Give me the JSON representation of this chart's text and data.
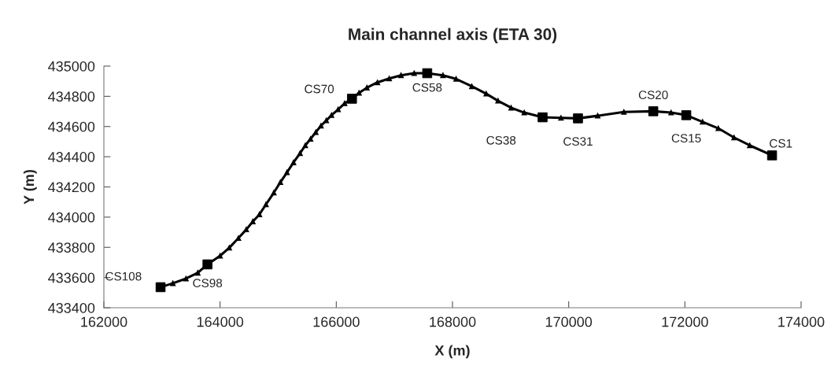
{
  "chart_data": {
    "type": "line",
    "title": "Main channel axis (ETA 30)",
    "xlabel": "X (m)",
    "ylabel": "Y (m)",
    "series": [
      {
        "marker": "triangle",
        "color": "#000000",
        "x": [
          162976,
          163188,
          163413,
          163616,
          163783,
          164000,
          164158,
          164316,
          164451,
          164564,
          164677,
          164790,
          164925,
          165038,
          165151,
          165264,
          165377,
          165467,
          165557,
          165647,
          165737,
          165828,
          165918,
          166031,
          166144,
          166270,
          166392,
          166527,
          166708,
          166911,
          167114,
          167340,
          167565,
          167836,
          168062,
          168333,
          168581,
          168784,
          169010,
          169235,
          169551,
          169867,
          170160,
          170499,
          170950,
          171456,
          171762,
          172024,
          172304,
          172575,
          172846,
          173116,
          173500
        ],
        "values": [
          433536,
          433562,
          433593,
          433631,
          433687,
          433744,
          433797,
          433861,
          433918,
          433971,
          434018,
          434084,
          434162,
          434231,
          434296,
          434362,
          434423,
          434475,
          434518,
          434562,
          434605,
          434640,
          434675,
          434713,
          434753,
          434784,
          434823,
          434857,
          434892,
          434918,
          434939,
          434953,
          434953,
          434939,
          434915,
          434866,
          434817,
          434770,
          434724,
          434692,
          434661,
          434657,
          434654,
          434671,
          434696,
          434701,
          434692,
          434675,
          434631,
          434588,
          434527,
          434475,
          434409
        ]
      },
      {
        "type": "scatter",
        "marker": "square",
        "color": "#000000",
        "x": [
          162976,
          163783,
          166270,
          167565,
          169551,
          170160,
          171456,
          172024,
          173500
        ],
        "values": [
          433536,
          433687,
          434784,
          434953,
          434661,
          434654,
          434701,
          434675,
          434409
        ]
      }
    ],
    "annotations": [
      {
        "text": "CS108",
        "x": 162976,
        "y": 433536
      },
      {
        "text": "CS98",
        "x": 163783,
        "y": 433687
      },
      {
        "text": "CS70",
        "x": 166270,
        "y": 434784
      },
      {
        "text": "CS58",
        "x": 167565,
        "y": 434953
      },
      {
        "text": "CS38",
        "x": 169551,
        "y": 434661
      },
      {
        "text": "CS31",
        "x": 170160,
        "y": 434654
      },
      {
        "text": "CS20",
        "x": 171456,
        "y": 434701
      },
      {
        "text": "CS15",
        "x": 172024,
        "y": 434675
      },
      {
        "text": "CS1",
        "x": 173500,
        "y": 434409
      }
    ],
    "xlim": [
      162000,
      174000
    ],
    "xticks": [
      162000,
      164000,
      166000,
      168000,
      170000,
      172000,
      174000
    ],
    "ylim": [
      433400,
      435000
    ],
    "yticks": [
      433400,
      433600,
      433800,
      434000,
      434200,
      434400,
      434600,
      434800,
      435000
    ],
    "grid": false,
    "legend": false,
    "line_style": "solid"
  }
}
